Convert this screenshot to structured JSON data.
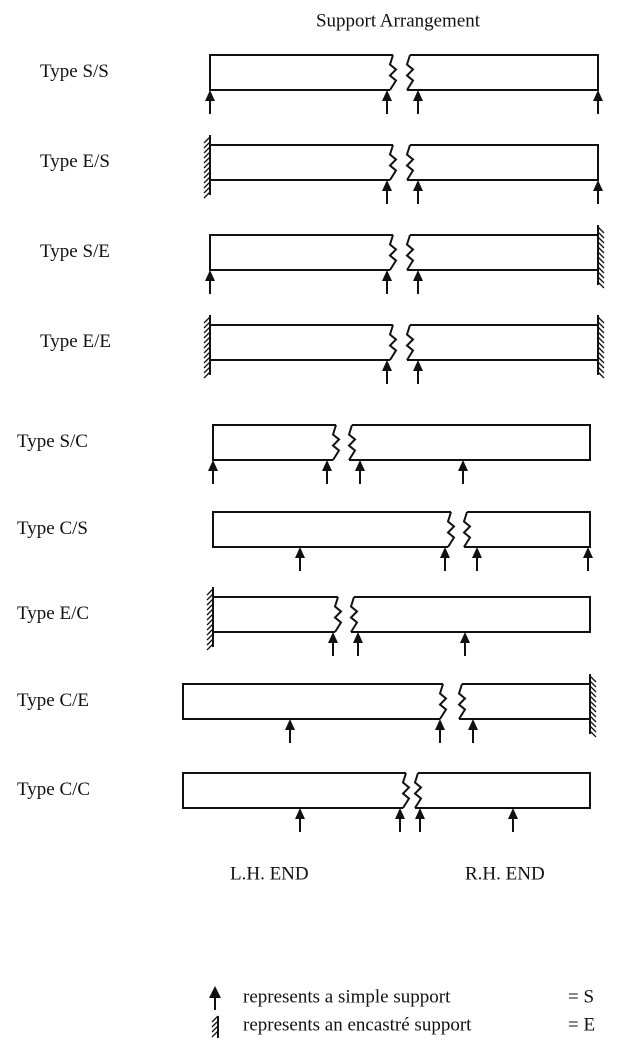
{
  "title": "Support Arrangement",
  "rows": [
    "Type S/S",
    "Type E/S",
    "Type S/E",
    "Type E/E",
    "Type S/C",
    "Type C/S",
    "Type E/C",
    "Type C/E",
    "Type C/C"
  ],
  "ends": {
    "left": "L.H. END",
    "right": "R.H. END"
  },
  "legend": [
    {
      "text": "represents a simple support",
      "code": "= S"
    },
    {
      "text": "represents an encastré support",
      "code": "= E"
    }
  ]
}
